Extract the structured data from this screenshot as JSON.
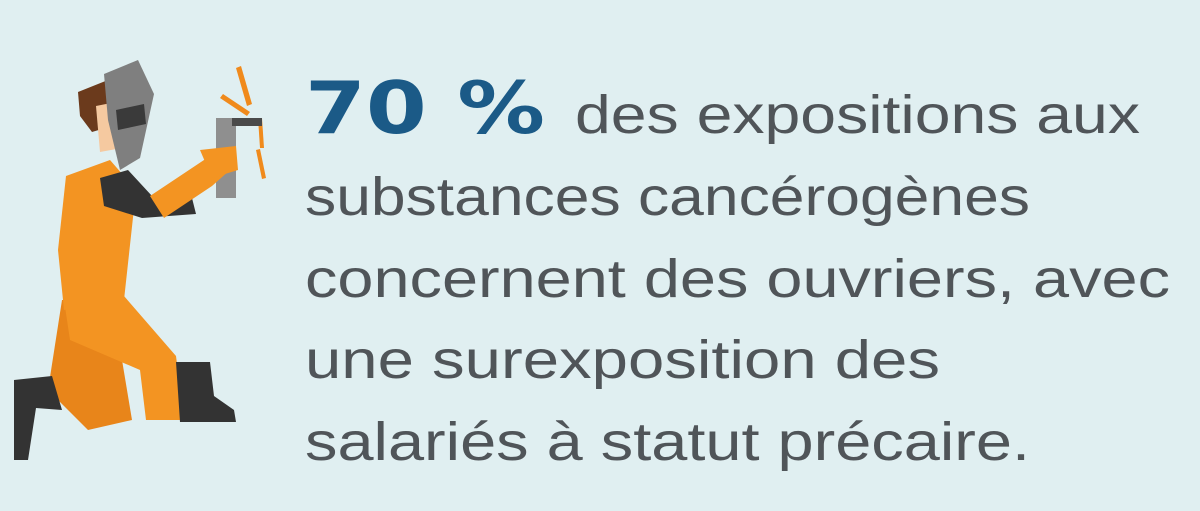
{
  "highlight": "70 %",
  "lines": [
    "des expositions aux",
    "substances cancérogènes",
    "concernent des ouvriers, avec",
    "une surexposition des",
    "salariés à statut précaire."
  ]
}
